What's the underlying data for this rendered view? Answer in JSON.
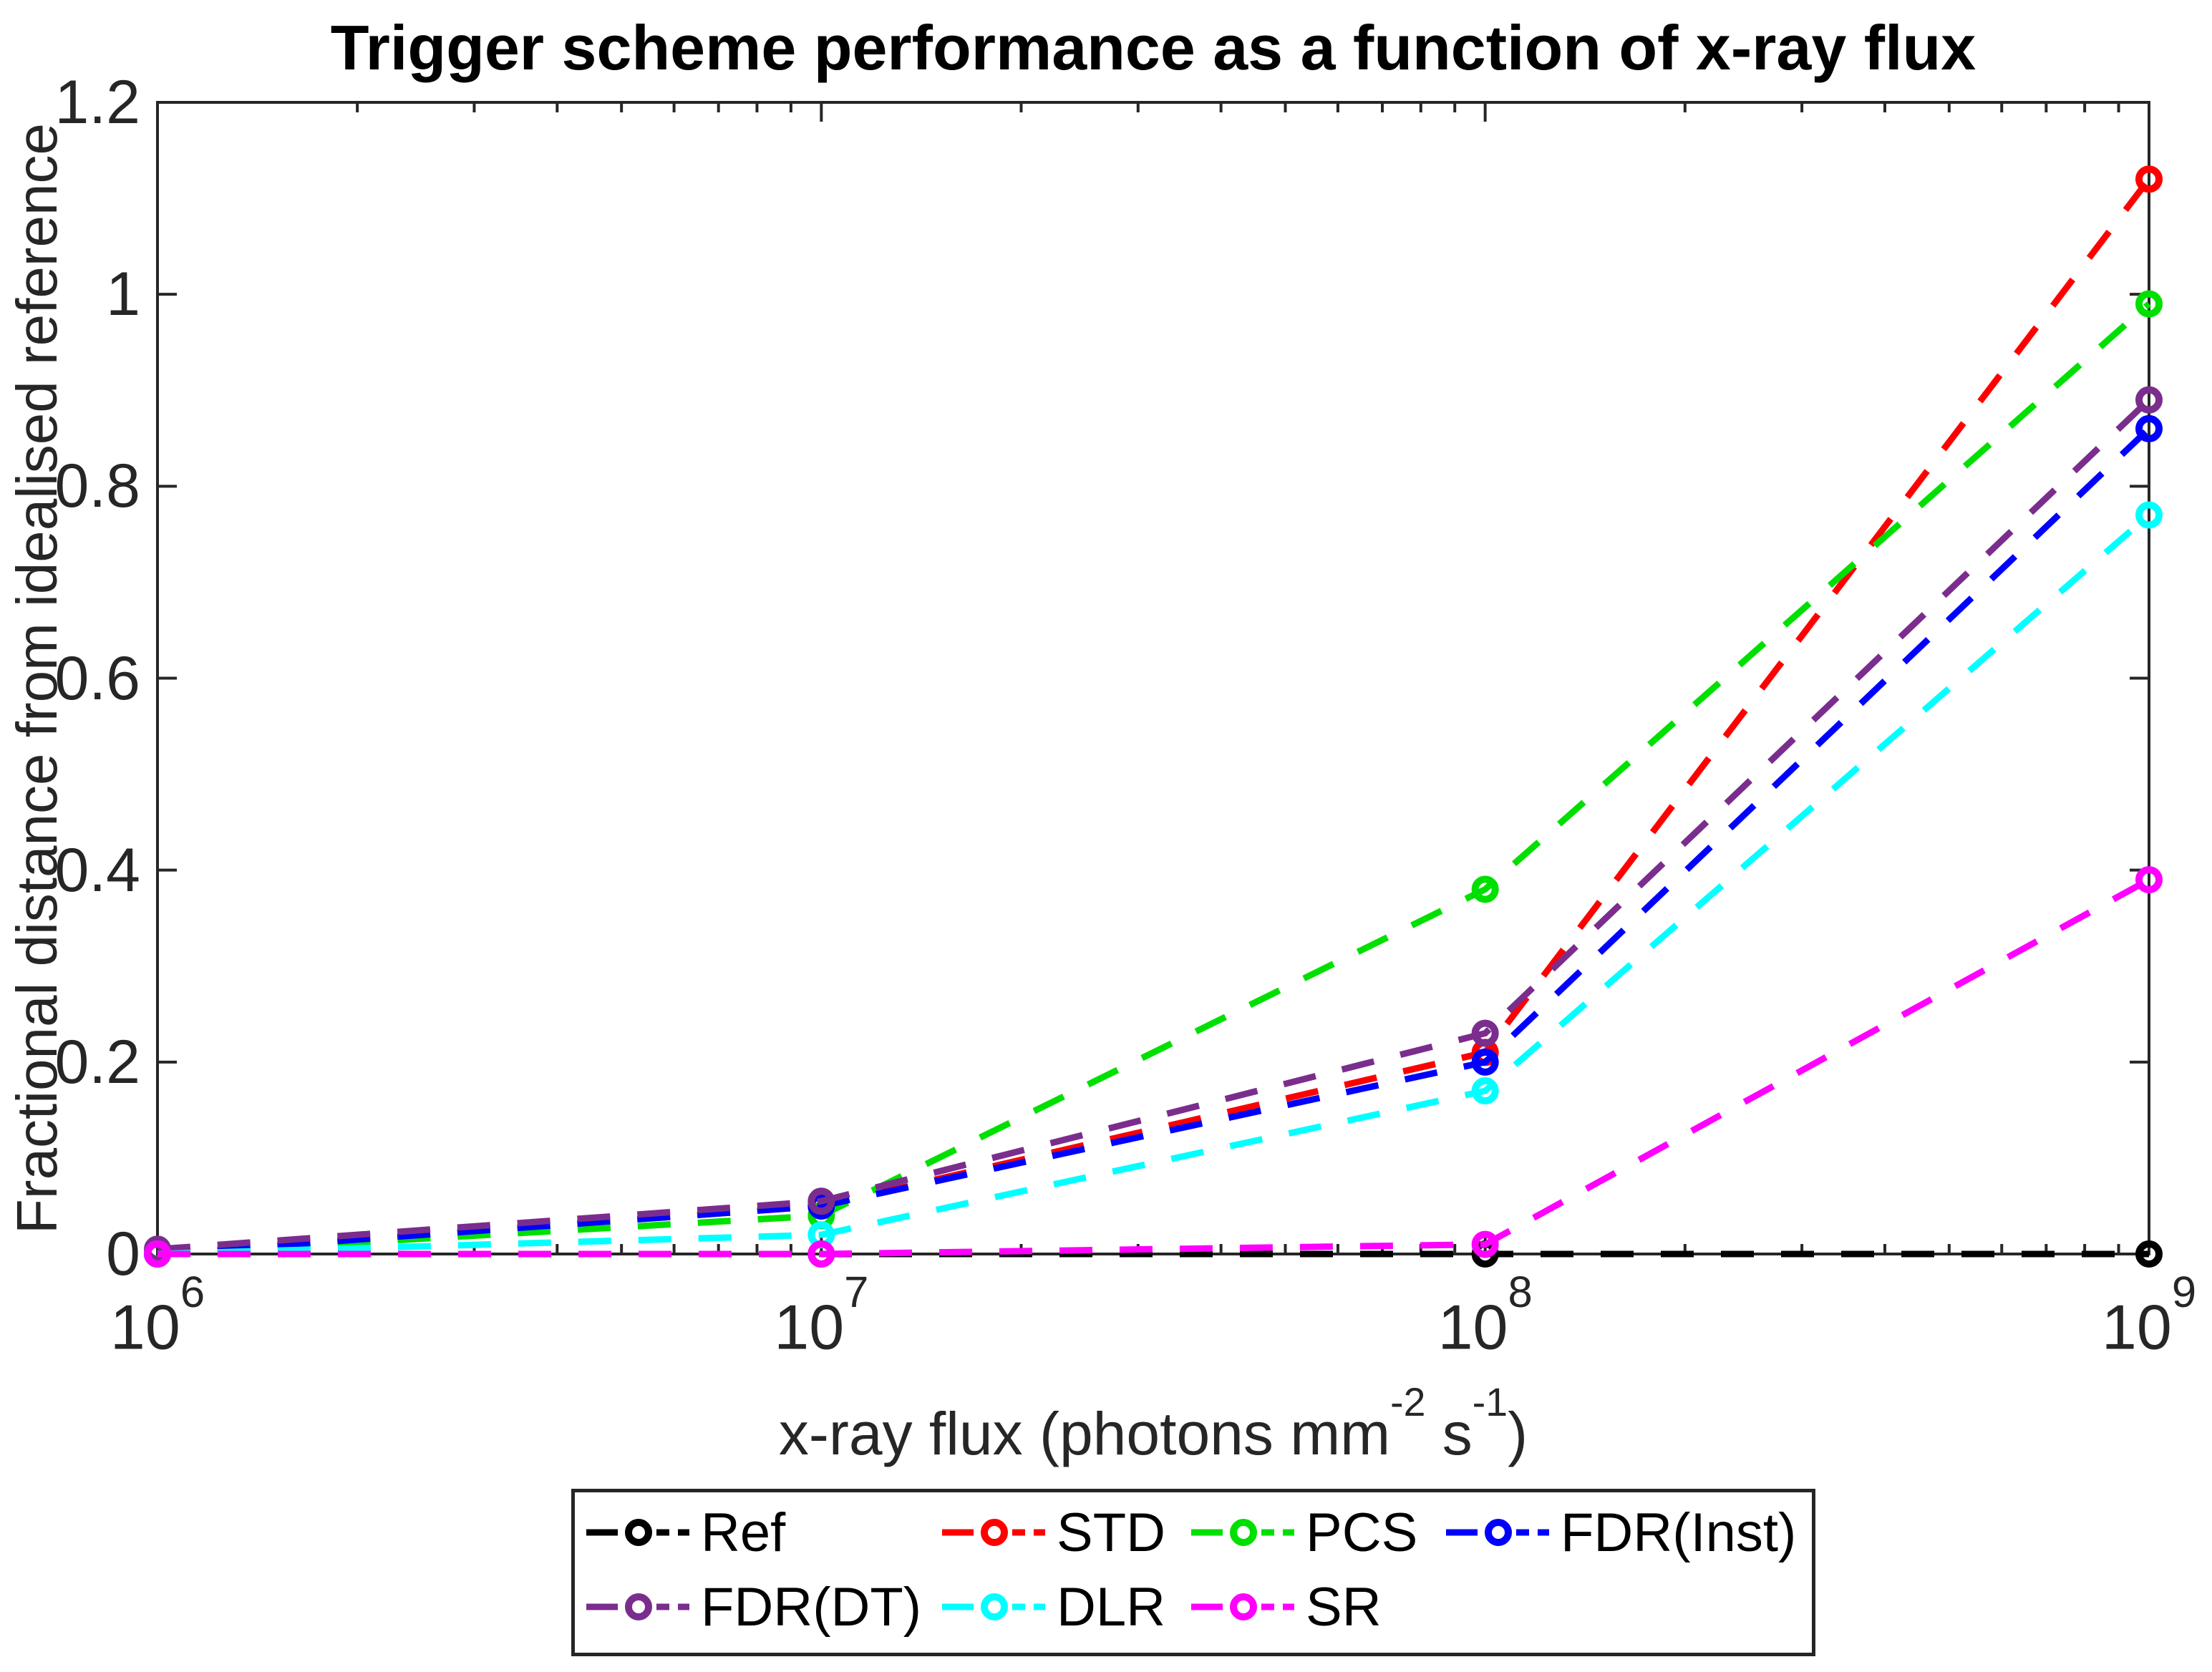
{
  "chart_data": {
    "type": "line",
    "title": "Trigger scheme performance as a function of x-ray flux",
    "ylabel": "Fractional distance from idealised reference",
    "xlabel_plain": "x-ray flux (photons mm^-2 s^-1)",
    "xlabel_parts": {
      "pre": "x-ray flux (photons mm",
      "sup1": "-2",
      "mid": " s",
      "sup2": "-1",
      "post": ")"
    },
    "x_scale": "log",
    "x": [
      1000000,
      10000000,
      100000000,
      1000000000
    ],
    "x_tick_base": "10",
    "x_tick_exponents": [
      6,
      7,
      8,
      9
    ],
    "x_log_range": [
      6,
      9
    ],
    "ylim": [
      0,
      1.2
    ],
    "y_ticks": [
      0,
      0.2,
      0.4,
      0.6,
      0.8,
      1,
      1.2
    ],
    "y_tick_labels": [
      "0",
      "0.2",
      "0.4",
      "0.6",
      "0.8",
      "1",
      "1.2"
    ],
    "grid": false,
    "legend_position": "below",
    "line_style": "dashed",
    "marker": "open-circle",
    "axes_color": "#262626",
    "series": [
      {
        "name": "Ref",
        "color": "#000000",
        "values": [
          0,
          0,
          0,
          0
        ]
      },
      {
        "name": "STD",
        "color": "#ff0000",
        "values": [
          0,
          0.05,
          0.21,
          1.12
        ]
      },
      {
        "name": "PCS",
        "color": "#00e000",
        "values": [
          0,
          0.04,
          0.38,
          0.99
        ]
      },
      {
        "name": "FDR(Inst)",
        "color": "#0000ff",
        "values": [
          0,
          0.05,
          0.2,
          0.86
        ]
      },
      {
        "name": "FDR(DT)",
        "color": "#7b2d8e",
        "values": [
          0.005,
          0.055,
          0.23,
          0.89
        ]
      },
      {
        "name": "DLR",
        "color": "#00ffff",
        "values": [
          0,
          0.02,
          0.17,
          0.77
        ]
      },
      {
        "name": "SR",
        "color": "#ff00ff",
        "values": [
          0,
          0,
          0.01,
          0.39
        ]
      }
    ]
  }
}
